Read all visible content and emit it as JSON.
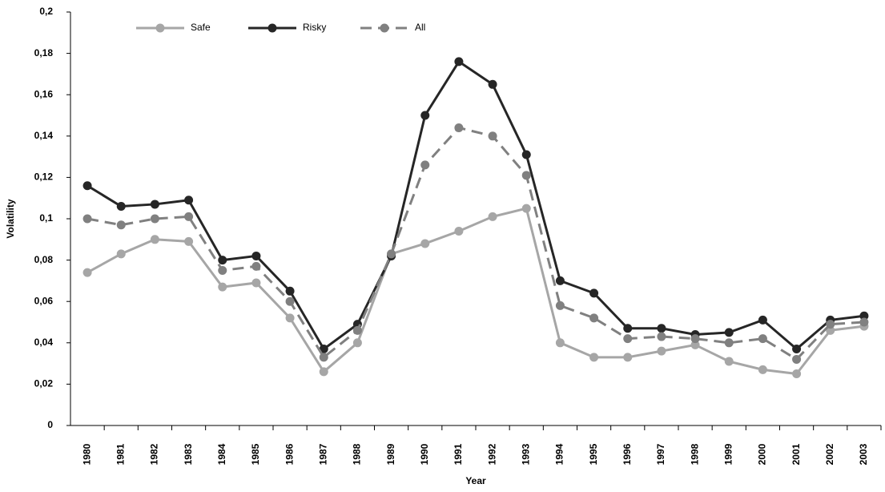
{
  "chart_data": {
    "type": "line",
    "x_label": "Year",
    "y_label": "Volatility",
    "categories": [
      "1980",
      "1981",
      "1982",
      "1983",
      "1984",
      "1985",
      "1986",
      "1987",
      "1988",
      "1989",
      "1990",
      "1991",
      "1992",
      "1993",
      "1994",
      "1995",
      "1996",
      "1997",
      "1998",
      "1999",
      "2000",
      "2001",
      "2002",
      "2003"
    ],
    "series": [
      {
        "name": "Safe",
        "color": "#a6a6a6",
        "dashed": false,
        "values": [
          0.074,
          0.083,
          0.09,
          0.089,
          0.067,
          0.069,
          0.052,
          0.026,
          0.04,
          0.083,
          0.088,
          0.094,
          0.101,
          0.105,
          0.04,
          0.033,
          0.033,
          0.036,
          0.039,
          0.031,
          0.027,
          0.025,
          0.046,
          0.048
        ]
      },
      {
        "name": "Risky",
        "color": "#262626",
        "dashed": false,
        "values": [
          0.116,
          0.106,
          0.107,
          0.109,
          0.08,
          0.082,
          0.065,
          0.037,
          0.049,
          0.082,
          0.15,
          0.176,
          0.165,
          0.131,
          0.07,
          0.064,
          0.047,
          0.047,
          0.044,
          0.045,
          0.051,
          0.037,
          0.051,
          0.053
        ]
      },
      {
        "name": "All",
        "color": "#808080",
        "dashed": true,
        "values": [
          0.1,
          0.097,
          0.1,
          0.101,
          0.075,
          0.077,
          0.06,
          0.033,
          0.046,
          0.083,
          0.126,
          0.144,
          0.14,
          0.121,
          0.058,
          0.052,
          0.042,
          0.043,
          0.042,
          0.04,
          0.042,
          0.032,
          0.049,
          0.05
        ]
      }
    ],
    "ylim": [
      0,
      0.2
    ],
    "yticks": [
      0,
      {
        "value": 0.02,
        "label": "0,02"
      },
      {
        "value": 0.04,
        "label": "0,04"
      },
      {
        "value": 0.06,
        "label": "0,06"
      },
      {
        "value": 0.08,
        "label": "0,08"
      },
      {
        "value": 0.1,
        "label": "0,1"
      },
      {
        "value": 0.12,
        "label": "0,12"
      },
      {
        "value": 0.14,
        "label": "0,14"
      },
      {
        "value": 0.16,
        "label": "0,16"
      },
      {
        "value": 0.18,
        "label": "0,18"
      },
      {
        "value": 0.2,
        "label": "0,2"
      }
    ],
    "grid": false,
    "legend": "top"
  }
}
